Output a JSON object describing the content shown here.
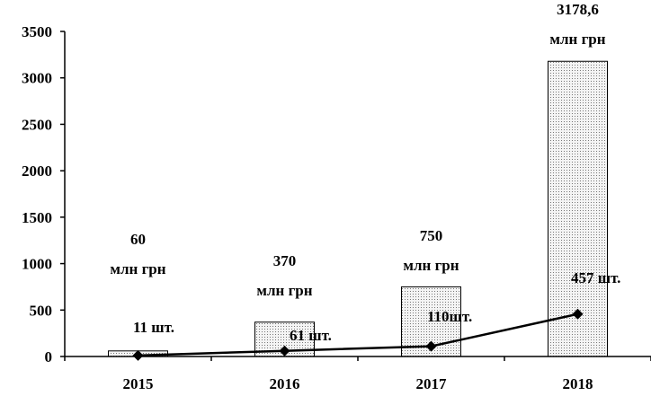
{
  "chart_data": {
    "type": "bar",
    "categories": [
      "2015",
      "2016",
      "2017",
      "2018"
    ],
    "series": [
      {
        "kind": "bar",
        "values": [
          60,
          370,
          750,
          3178.6
        ],
        "labels": [
          [
            "60",
            "млн грн"
          ],
          [
            "370",
            "млн грн"
          ],
          [
            "750",
            "млн грн"
          ],
          [
            "3178,6",
            "млн грн"
          ]
        ]
      },
      {
        "kind": "line",
        "values": [
          11,
          61,
          110,
          457
        ],
        "labels": [
          "11 шт.",
          "61 шт.",
          "110шт.",
          "457 шт."
        ]
      }
    ],
    "y_ticks": [
      "0",
      "500",
      "1000",
      "1500",
      "2000",
      "2500",
      "3000",
      "3500"
    ],
    "ylim": [
      0,
      3500
    ],
    "grid": false,
    "bar_fill": "dotted",
    "colors": {
      "bar_fill": "#f2f2f2",
      "bar_dots": "#666666",
      "line": "#000000",
      "axis": "#000000"
    }
  }
}
